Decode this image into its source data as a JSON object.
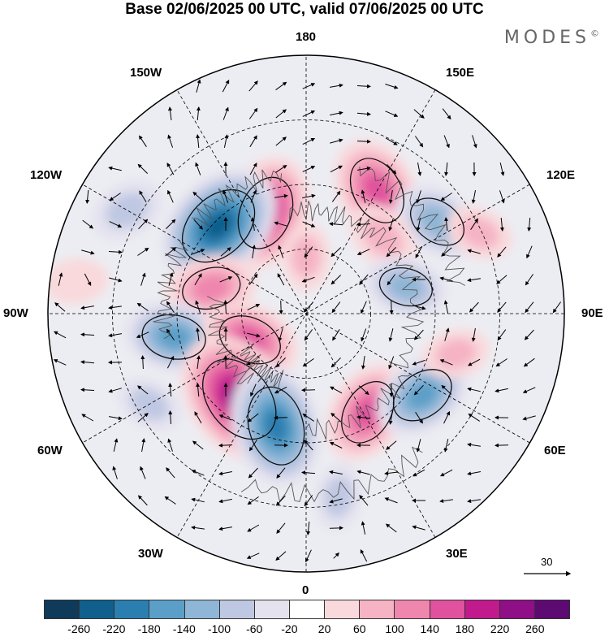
{
  "title": "Base 02/06/2025 00 UTC, valid 07/06/2025 00 UTC",
  "logo": "MODES",
  "logo_mark": "©",
  "longitude_labels": {
    "top": "180",
    "bottom": "0",
    "left": "90W",
    "right": "90E",
    "upper_left_1": "150W",
    "upper_left_2": "120W",
    "upper_right_1": "150E",
    "upper_right_2": "120E",
    "lower_left_1": "60W",
    "lower_left_2": "30W",
    "lower_right_1": "60E",
    "lower_right_2": "30E"
  },
  "vector_scale_label": "30",
  "colorbar": {
    "ticks": [
      "-260",
      "-220",
      "-180",
      "-140",
      "-100",
      "-60",
      "-20",
      "20",
      "60",
      "100",
      "140",
      "180",
      "220",
      "260"
    ],
    "colors": [
      "#0f3a5a",
      "#115f8c",
      "#2a7fb0",
      "#5b9fc8",
      "#8fb6d6",
      "#bfc8e2",
      "#e4e2ef",
      "#ffffff",
      "#f9d9dc",
      "#f5b3c4",
      "#ef86ae",
      "#e0529d",
      "#c11a8d",
      "#8e0f86",
      "#5d0a72"
    ]
  },
  "anomalies": [
    {
      "name": "pink-anomaly-1",
      "lon": 202,
      "r": 0.42,
      "value": 180
    },
    {
      "name": "blue-anomaly-1",
      "lon": 225,
      "r": 0.48,
      "value": -220
    },
    {
      "name": "pink-anomaly-2",
      "lon": 150,
      "r": 0.55,
      "value": 160
    },
    {
      "name": "blue-anomaly-2",
      "lon": 125,
      "r": 0.62,
      "value": -120
    },
    {
      "name": "pink-anomaly-3",
      "lon": 135,
      "r": 0.42,
      "value": 80
    },
    {
      "name": "blue-anomaly-3",
      "lon": 105,
      "r": 0.4,
      "value": -100
    },
    {
      "name": "pink-anomaly-4",
      "lon": 255,
      "r": 0.38,
      "value": 120
    },
    {
      "name": "blue-anomaly-4",
      "lon": 280,
      "r": 0.52,
      "value": -140
    },
    {
      "name": "pink-anomaly-5",
      "lon": 295,
      "r": 0.24,
      "value": 140
    },
    {
      "name": "pink-anomaly-6",
      "lon": 322,
      "r": 0.42,
      "value": 240
    },
    {
      "name": "blue-anomaly-5",
      "lon": 345,
      "r": 0.45,
      "value": -200
    },
    {
      "name": "pink-anomaly-7",
      "lon": 32,
      "r": 0.45,
      "value": 150
    },
    {
      "name": "blue-anomaly-6",
      "lon": 55,
      "r": 0.55,
      "value": -140
    },
    {
      "name": "pink-anomaly-8",
      "lon": 75,
      "r": 0.6,
      "value": 60
    },
    {
      "name": "pink-anomaly-9",
      "lon": 115,
      "r": 0.74,
      "value": 60
    },
    {
      "name": "blue-anomaly-7",
      "lon": 240,
      "r": 0.8,
      "value": -80
    },
    {
      "name": "pink-anomaly-10",
      "lon": 262,
      "r": 0.9,
      "value": 50
    },
    {
      "name": "blue-anomaly-8",
      "lon": 10,
      "r": 0.72,
      "value": -60
    },
    {
      "name": "pink-anomaly-11",
      "lon": 180,
      "r": 0.22,
      "value": 60
    },
    {
      "name": "blue-anomaly-9",
      "lon": 300,
      "r": 0.7,
      "value": -60
    }
  ]
}
